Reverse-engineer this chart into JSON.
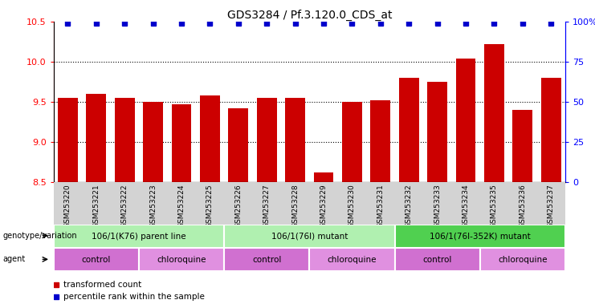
{
  "title": "GDS3284 / Pf.3.120.0_CDS_at",
  "samples": [
    "GSM253220",
    "GSM253221",
    "GSM253222",
    "GSM253223",
    "GSM253224",
    "GSM253225",
    "GSM253226",
    "GSM253227",
    "GSM253228",
    "GSM253229",
    "GSM253230",
    "GSM253231",
    "GSM253232",
    "GSM253233",
    "GSM253234",
    "GSM253235",
    "GSM253236",
    "GSM253237"
  ],
  "bar_values": [
    9.55,
    9.6,
    9.55,
    9.5,
    9.47,
    9.58,
    9.42,
    9.55,
    9.55,
    8.62,
    9.5,
    9.52,
    9.8,
    9.75,
    10.04,
    10.22,
    9.4,
    9.8
  ],
  "percentile_values": [
    99,
    99,
    99,
    99,
    99,
    99,
    99,
    99,
    99,
    99,
    99,
    99,
    99,
    99,
    99,
    99,
    99,
    99
  ],
  "ylim_left": [
    8.5,
    10.5
  ],
  "ylim_right": [
    0,
    100
  ],
  "yticks_left": [
    8.5,
    9.0,
    9.5,
    10.0,
    10.5
  ],
  "yticks_right": [
    0,
    25,
    50,
    75,
    100
  ],
  "bar_color": "#cc0000",
  "percentile_color": "#0000cc",
  "background_color": "#ffffff",
  "title_fontsize": 10,
  "label_bg_color": "#d3d3d3",
  "genotype_groups": [
    {
      "label": "106/1(K76) parent line",
      "start": 0,
      "end": 5,
      "color": "#b0f0b0"
    },
    {
      "label": "106/1(76I) mutant",
      "start": 6,
      "end": 11,
      "color": "#b0f0b0"
    },
    {
      "label": "106/1(76I-352K) mutant",
      "start": 12,
      "end": 17,
      "color": "#50d050"
    }
  ],
  "agent_groups": [
    {
      "label": "control",
      "start": 0,
      "end": 2,
      "color": "#d070d0"
    },
    {
      "label": "chloroquine",
      "start": 3,
      "end": 5,
      "color": "#e090e0"
    },
    {
      "label": "control",
      "start": 6,
      "end": 8,
      "color": "#d070d0"
    },
    {
      "label": "chloroquine",
      "start": 9,
      "end": 11,
      "color": "#e090e0"
    },
    {
      "label": "control",
      "start": 12,
      "end": 14,
      "color": "#d070d0"
    },
    {
      "label": "chloroquine",
      "start": 15,
      "end": 17,
      "color": "#e090e0"
    }
  ],
  "legend_items": [
    {
      "label": "transformed count",
      "color": "#cc0000"
    },
    {
      "label": "percentile rank within the sample",
      "color": "#0000cc"
    }
  ]
}
